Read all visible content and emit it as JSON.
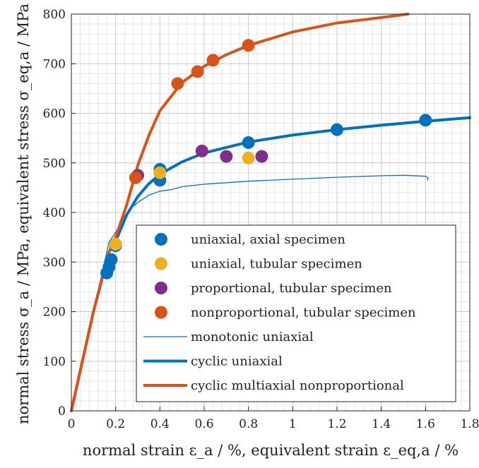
{
  "chart_data": {
    "type": "scatter",
    "xlabel": "normal strain ε_a / %, equivalent strain ε_eq,a / %",
    "ylabel": "normal stress σ_a / MPa, equivalent stress σ_eq,a / MPa",
    "xlim": [
      0,
      1.8
    ],
    "ylim": [
      0,
      800
    ],
    "xticks": [
      0,
      0.2,
      0.4,
      0.6,
      0.8,
      1,
      1.2,
      1.4,
      1.6,
      1.8
    ],
    "xtick_labels": [
      "0",
      "0.2",
      "0.4",
      "0.6",
      "0.8",
      "1",
      "1.2",
      "1.4",
      "1.6",
      "1.8"
    ],
    "yticks": [
      0,
      100,
      200,
      300,
      400,
      500,
      600,
      700,
      800
    ],
    "ytick_labels": [
      "0",
      "100",
      "200",
      "300",
      "400",
      "500",
      "600",
      "700",
      "800"
    ],
    "grid": true,
    "minor_grid": true,
    "legend_position": "bottom-right",
    "series": [
      {
        "name": "uniaxial, axial specimen",
        "kind": "points",
        "color": "#0072BD",
        "x": [
          0.16,
          0.17,
          0.18,
          0.2,
          0.4,
          0.4,
          0.8,
          1.2,
          1.6
        ],
        "y": [
          278,
          290,
          305,
          333,
          465,
          487,
          541,
          567,
          586
        ]
      },
      {
        "name": "uniaxial, tubular specimen",
        "kind": "points",
        "color": "#EDB120",
        "x": [
          0.2,
          0.4,
          0.8
        ],
        "y": [
          336,
          480,
          510
        ]
      },
      {
        "name": "proportional, tubular specimen",
        "kind": "points",
        "color": "#7E2F8E",
        "x": [
          0.3,
          0.59,
          0.7,
          0.86
        ],
        "y": [
          475,
          524,
          513,
          513
        ]
      },
      {
        "name": "nonproportional, tubular specimen",
        "kind": "points",
        "color": "#D95319",
        "x": [
          0.29,
          0.48,
          0.57,
          0.64,
          0.8
        ],
        "y": [
          470,
          660,
          684,
          707,
          737
        ]
      },
      {
        "name": "monotonic uniaxial",
        "kind": "line-thin",
        "color": "#0072BD",
        "x": [
          0,
          0.1,
          0.17,
          0.2,
          0.23,
          0.26,
          0.3,
          0.35,
          0.4,
          0.45,
          0.5,
          0.6,
          0.8,
          1.0,
          1.2,
          1.4,
          1.5,
          1.6,
          1.61,
          1.61
        ],
        "y": [
          0,
          200,
          340,
          360,
          385,
          405,
          420,
          435,
          443,
          446,
          452,
          457,
          463,
          467,
          471,
          474,
          475,
          473,
          470,
          465
        ]
      },
      {
        "name": "cyclic uniaxial",
        "kind": "line-thick",
        "color": "#0072BD",
        "x": [
          0,
          0.1,
          0.17,
          0.2,
          0.25,
          0.3,
          0.35,
          0.4,
          0.5,
          0.6,
          0.8,
          1.0,
          1.2,
          1.4,
          1.6,
          1.8
        ],
        "y": [
          0,
          200,
          320,
          342,
          395,
          432,
          458,
          477,
          502,
          520,
          542,
          556,
          567,
          576,
          584,
          591
        ]
      },
      {
        "name": "cyclic multiaxial nonproportional",
        "kind": "line-thick",
        "color": "#D95319",
        "x": [
          0,
          0.1,
          0.17,
          0.2,
          0.25,
          0.3,
          0.35,
          0.4,
          0.5,
          0.6,
          0.7,
          0.8,
          1.0,
          1.2,
          1.4,
          1.52
        ],
        "y": [
          0,
          200,
          320,
          350,
          415,
          495,
          555,
          605,
          662,
          695,
          718,
          737,
          764,
          782,
          793,
          800
        ]
      }
    ]
  }
}
